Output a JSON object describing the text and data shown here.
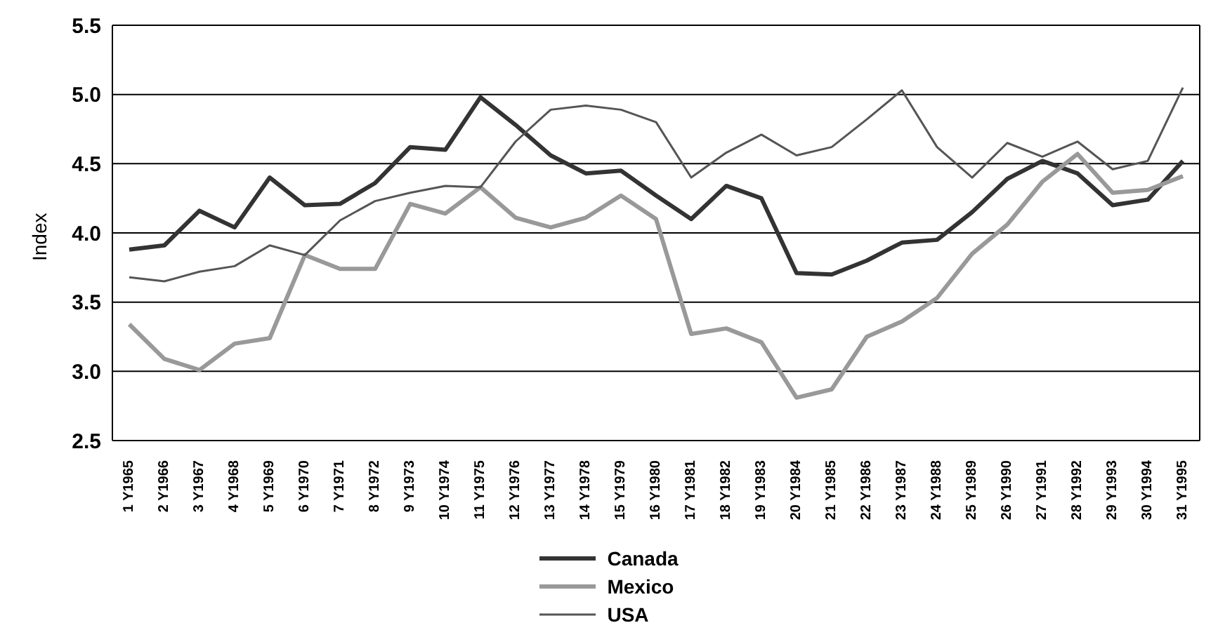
{
  "chart_data": {
    "type": "line",
    "ylabel": "Index",
    "categories": [
      "1 Y1965",
      "2 Y1966",
      "3 Y1967",
      "4 Y1968",
      "5 Y1969",
      "6 Y1970",
      "7 Y1971",
      "8 Y1972",
      "9 Y1973",
      "10 Y1974",
      "11 Y1975",
      "12 Y1976",
      "13 Y1977",
      "14 Y1978",
      "15 Y1979",
      "16 Y1980",
      "17 Y1981",
      "18 Y1982",
      "19 Y1983",
      "20 Y1984",
      "21 Y1985",
      "22 Y1986",
      "23 Y1987",
      "24 Y1988",
      "25 Y1989",
      "26 Y1990",
      "27 Y1991",
      "28 Y1992",
      "29 Y1993",
      "30 Y1994",
      "31 Y1995"
    ],
    "series": [
      {
        "name": "Canada",
        "color": "#333333",
        "values": [
          3.88,
          3.91,
          4.16,
          4.04,
          4.4,
          4.2,
          4.21,
          4.36,
          4.62,
          4.6,
          4.98,
          4.78,
          4.56,
          4.43,
          4.45,
          4.27,
          4.1,
          4.34,
          4.25,
          3.71,
          3.7,
          3.8,
          3.93,
          3.95,
          4.15,
          4.39,
          4.52,
          4.43,
          4.2,
          4.24,
          4.52
        ]
      },
      {
        "name": "Mexico",
        "color": "#999999",
        "values": [
          3.34,
          3.09,
          3.01,
          3.2,
          3.24,
          3.84,
          3.74,
          3.74,
          4.21,
          4.14,
          4.33,
          4.11,
          4.04,
          4.11,
          4.27,
          4.1,
          3.27,
          3.31,
          3.21,
          2.81,
          2.87,
          3.25,
          3.36,
          3.53,
          3.85,
          4.06,
          4.37,
          4.57,
          4.29,
          4.31,
          4.41
        ]
      },
      {
        "name": "USA",
        "color": "#555555",
        "values": [
          3.68,
          3.65,
          3.72,
          3.76,
          3.91,
          3.84,
          4.09,
          4.23,
          4.29,
          4.34,
          4.33,
          4.66,
          4.89,
          4.92,
          4.89,
          4.8,
          4.4,
          4.58,
          4.71,
          4.56,
          4.62,
          4.82,
          5.03,
          4.62,
          4.4,
          4.65,
          4.55,
          4.66,
          4.46,
          4.52,
          5.05
        ]
      }
    ],
    "ylim": [
      2.5,
      5.5
    ],
    "yticks": [
      {
        "value": 2.5,
        "label": "2.5"
      },
      {
        "value": 3,
        "label": "3.0"
      },
      {
        "value": 3.5,
        "label": "3.5"
      },
      {
        "value": 4,
        "label": "4.0"
      },
      {
        "value": 4.5,
        "label": "4.5"
      },
      {
        "value": 5,
        "label": "5.0"
      },
      {
        "value": 5.5,
        "label": "5.5"
      }
    ],
    "grid": "y",
    "legend": "bottom",
    "marker": "none",
    "line_style": "solid"
  }
}
